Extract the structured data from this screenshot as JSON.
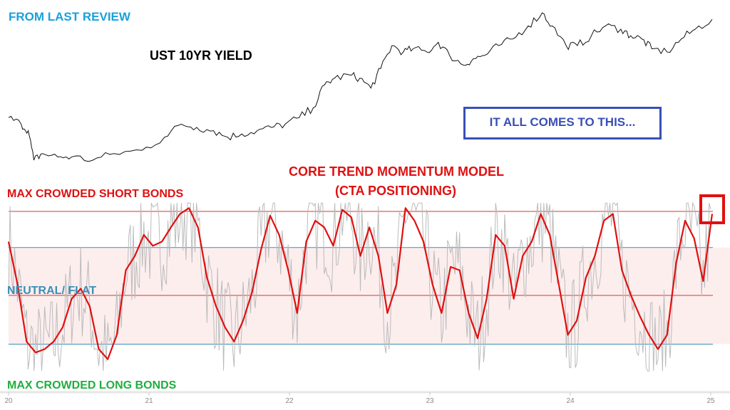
{
  "colors": {
    "yield": "#111111",
    "momentum": "#e01010",
    "raw": "#bbbbbb",
    "band": "#fdeeee",
    "blue_line": "#3a8fb7",
    "red_line": "#e03030",
    "callout": "#3a4fb5"
  },
  "labels": {
    "from_last_review": "FROM LAST REVIEW",
    "yield_title": "UST 10YR YIELD",
    "callout": "IT ALL COMES TO THIS...",
    "model_title": "CORE TREND MOMENTUM MODEL",
    "model_subtitle": "(CTA POSITIONING)",
    "max_short": "MAX CROWDED SHORT BONDS",
    "neutral": "NEUTRAL/ FLAT",
    "max_long": "MAX CROWDED LONG BONDS"
  },
  "chart_data": [
    {
      "type": "line",
      "title": "UST 10YR YIELD",
      "xlim": [
        20,
        25
      ],
      "x": [
        20.0,
        20.09,
        20.14,
        20.18,
        20.24,
        20.35,
        20.45,
        20.6,
        20.75,
        20.95,
        21.11,
        21.23,
        21.34,
        21.46,
        21.56,
        21.66,
        21.77,
        21.87,
        21.97,
        22.07,
        22.17,
        22.25,
        22.32,
        22.43,
        22.5,
        22.58,
        22.65,
        22.73,
        22.81,
        22.88,
        22.98,
        23.06,
        23.14,
        23.24,
        23.31,
        23.39,
        23.49,
        23.59,
        23.7,
        23.8,
        23.87,
        23.97,
        24.05,
        24.15,
        24.25,
        24.36,
        24.43,
        24.51,
        24.58,
        24.69,
        24.79,
        24.89,
        25.01
      ],
      "y": [
        1.8,
        1.6,
        1.4,
        0.5,
        0.7,
        0.6,
        0.6,
        0.5,
        0.7,
        0.8,
        1.2,
        1.6,
        1.5,
        1.4,
        1.2,
        1.3,
        1.4,
        1.5,
        1.6,
        1.8,
        2.1,
        2.8,
        3.0,
        3.1,
        3.0,
        2.7,
        3.3,
        4.0,
        3.8,
        3.9,
        3.8,
        4.1,
        3.7,
        3.4,
        3.6,
        3.7,
        4.0,
        4.2,
        4.6,
        5.0,
        4.6,
        4.0,
        4.0,
        4.3,
        4.6,
        4.5,
        4.3,
        4.2,
        3.9,
        3.8,
        4.2,
        4.5,
        4.8
      ]
    },
    {
      "type": "line",
      "title": "CORE TREND MOMENTUM MODEL",
      "xlim": [
        20,
        25
      ],
      "x_ticks": [
        "20",
        "21",
        "22",
        "23",
        "24",
        "25"
      ],
      "reference_levels": {
        "max_short": 1.0,
        "upper_band": 0.57,
        "neutral": 0.0,
        "lower_band": -0.58
      },
      "series": [
        {
          "name": "momentum",
          "values": [
            0.64,
            0.13,
            -0.55,
            -0.68,
            -0.64,
            -0.55,
            -0.38,
            -0.04,
            0.08,
            -0.13,
            -0.64,
            -0.76,
            -0.47,
            0.3,
            0.47,
            0.72,
            0.59,
            0.64,
            0.81,
            0.97,
            1.04,
            0.81,
            0.21,
            -0.13,
            -0.38,
            -0.55,
            -0.3,
            0.04,
            0.55,
            0.95,
            0.72,
            0.3,
            -0.21,
            0.64,
            0.89,
            0.81,
            0.59,
            1.02,
            0.93,
            0.47,
            0.81,
            0.47,
            -0.21,
            0.13,
            1.04,
            0.89,
            0.64,
            0.13,
            -0.21,
            0.34,
            0.3,
            -0.21,
            -0.51,
            -0.04,
            0.72,
            0.59,
            -0.04,
            0.47,
            0.64,
            0.97,
            0.72,
            0.13,
            -0.47,
            -0.3,
            0.21,
            0.47,
            0.89,
            0.97,
            0.3,
            0.0,
            -0.25,
            -0.47,
            -0.64,
            -0.47,
            0.38,
            0.89,
            0.68,
            0.17,
            0.97
          ]
        }
      ]
    }
  ]
}
